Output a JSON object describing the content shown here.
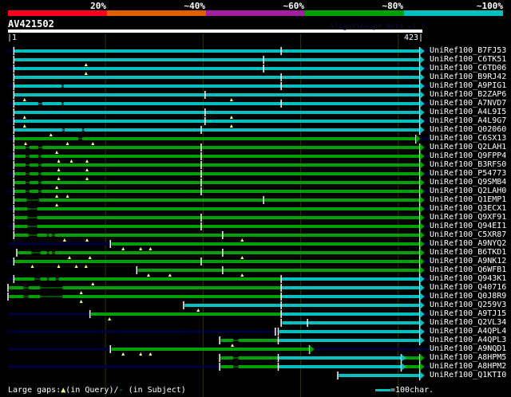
{
  "coverage_legend": {
    "labels": [
      "20%",
      "~40%",
      "~60%",
      "~80%",
      "~100%"
    ],
    "colors": [
      "#ff0020",
      "#e06000",
      "#a020a0",
      "#00a000",
      "#00c0c0"
    ]
  },
  "query": {
    "name": "AV421502",
    "start_label": "|1",
    "end_label": "423|",
    "length": 423,
    "tool": "AlignView.pm Beta v1.7"
  },
  "colors": {
    "c": "#00c0c0",
    "g": "#00a000",
    "n": "#000040",
    "tri": "#ffff80",
    "grid": "#303010"
  },
  "footer": {
    "gaps_label": "Large gaps:",
    "query_gap": "(in Query)/",
    "subject_gap": "(in Subject)",
    "scale_label": "=100char."
  },
  "rows": [
    {
      "label": "UniRef100_B7FJ53",
      "col": "c",
      "nl": 1,
      "nr": 1,
      "s": [
        [
          6,
          422
        ]
      ],
      "k": [
        6,
        280
      ],
      "t": []
    },
    {
      "label": "UniRef100_C6TK51",
      "col": "c",
      "s": [
        [
          6,
          422
        ]
      ],
      "k": [
        6,
        262
      ],
      "t": [
        80
      ]
    },
    {
      "label": "UniRef100_C6TD06",
      "col": "c",
      "nl": 1,
      "nr": 1,
      "s": [
        [
          6,
          422
        ]
      ],
      "k": [
        6,
        262
      ],
      "t": [
        80
      ]
    },
    {
      "label": "UniRef100_B9RJ42",
      "col": "c",
      "s": [
        [
          6,
          422
        ]
      ],
      "k": [
        6,
        280
      ],
      "t": []
    },
    {
      "label": "UniRef100_A9PIG1",
      "col": "c",
      "nl": 1,
      "nr": 1,
      "s": [
        [
          6,
          55
        ],
        [
          55,
          57,
          0,
          1
        ],
        [
          57,
          422
        ]
      ],
      "k": [
        6,
        280
      ],
      "t": []
    },
    {
      "label": "UniRef100_B2ZAP6",
      "col": "c",
      "s": [
        [
          6,
          422
        ]
      ],
      "k": [
        6,
        202
      ],
      "t": [
        17,
        229
      ]
    },
    {
      "label": "UniRef100_A7NVD7",
      "col": "c",
      "nl": 1,
      "nr": 1,
      "s": [
        [
          6,
          31
        ],
        [
          31,
          35,
          0,
          1
        ],
        [
          35,
          55
        ],
        [
          55,
          57,
          0,
          1
        ],
        [
          57,
          422
        ]
      ],
      "k": [
        6,
        280
      ],
      "t": []
    },
    {
      "label": "UniRef100_A4L9I5",
      "col": "c",
      "s": [
        [
          6,
          422
        ]
      ],
      "k": [
        6,
        202
      ],
      "t": [
        17,
        229
      ]
    },
    {
      "label": "UniRef100_A4L9G7",
      "col": "c",
      "nl": 1,
      "nr": 1,
      "s": [
        [
          6,
          422
        ]
      ],
      "k": [
        6,
        202
      ],
      "t": [
        17,
        229
      ]
    },
    {
      "label": "UniRef100_Q02060",
      "col": "c",
      "s": [
        [
          6,
          56
        ],
        [
          56,
          58,
          0,
          1
        ],
        [
          58,
          76
        ],
        [
          76,
          78,
          0,
          1
        ],
        [
          78,
          422
        ]
      ],
      "k": [
        6,
        198
      ],
      "t": [
        44
      ]
    },
    {
      "label": "UniRef100_C6SX13",
      "col": "g",
      "nl": 1,
      "nr": 1,
      "s": [
        [
          6,
          72
        ],
        [
          72,
          76,
          0,
          1
        ],
        [
          76,
          418
        ]
      ],
      "k": [
        6
      ],
      "t": [
        18,
        61,
        87
      ]
    },
    {
      "label": "UniRef100_Q2LAH1",
      "col": "g",
      "s": [
        [
          6,
          18
        ],
        [
          18,
          22,
          0,
          1
        ],
        [
          22,
          31
        ],
        [
          31,
          35,
          0,
          1
        ],
        [
          35,
          422
        ]
      ],
      "k": [
        6,
        198
      ],
      "t": [
        50
      ]
    },
    {
      "label": "UniRef100_Q9FPP4",
      "col": "g",
      "nl": 1,
      "nr": 1,
      "s": [
        [
          6,
          18
        ],
        [
          18,
          22,
          0,
          1
        ],
        [
          22,
          31
        ],
        [
          31,
          34,
          0,
          1
        ],
        [
          34,
          422
        ]
      ],
      "k": [
        6,
        198
      ],
      "t": [
        52,
        65,
        81
      ]
    },
    {
      "label": "UniRef100_B3RFS0",
      "col": "g",
      "s": [
        [
          6,
          18
        ],
        [
          18,
          22,
          0,
          1
        ],
        [
          22,
          31
        ],
        [
          31,
          34,
          0,
          1
        ],
        [
          34,
          422
        ]
      ],
      "k": [
        6,
        198
      ],
      "t": [
        52,
        81
      ]
    },
    {
      "label": "UniRef100_P54773",
      "col": "g",
      "nl": 1,
      "nr": 1,
      "s": [
        [
          6,
          18
        ],
        [
          18,
          22,
          0,
          1
        ],
        [
          22,
          31
        ],
        [
          31,
          34,
          0,
          1
        ],
        [
          34,
          422
        ]
      ],
      "k": [
        6,
        198
      ],
      "t": [
        52,
        81
      ]
    },
    {
      "label": "UniRef100_Q9SMB4",
      "col": "g",
      "s": [
        [
          6,
          18
        ],
        [
          18,
          22,
          0,
          1
        ],
        [
          22,
          31
        ],
        [
          31,
          34,
          0,
          1
        ],
        [
          34,
          422
        ]
      ],
      "k": [
        6,
        198
      ],
      "t": [
        50
      ]
    },
    {
      "label": "UniRef100_Q2LAH0",
      "col": "g",
      "nl": 1,
      "nr": 1,
      "s": [
        [
          6,
          18
        ],
        [
          18,
          22,
          0,
          1
        ],
        [
          22,
          31
        ],
        [
          31,
          34,
          0,
          1
        ],
        [
          34,
          422
        ]
      ],
      "k": [
        6,
        198
      ],
      "t": [
        50,
        61
      ]
    },
    {
      "label": "UniRef100_Q1EMP1",
      "col": "g",
      "s": [
        [
          6,
          19
        ],
        [
          19,
          32,
          0,
          1
        ],
        [
          32,
          422
        ]
      ],
      "k": [
        6,
        262
      ],
      "t": [
        50
      ]
    },
    {
      "label": "UniRef100_Q3ECX1",
      "col": "g",
      "nl": 1,
      "nr": 1,
      "s": [
        [
          6,
          20
        ],
        [
          20,
          30,
          0,
          1
        ],
        [
          30,
          422
        ]
      ],
      "k": [
        6
      ],
      "t": []
    },
    {
      "label": "UniRef100_Q9XF91",
      "col": "g",
      "s": [
        [
          6,
          20
        ],
        [
          20,
          30,
          0,
          1
        ],
        [
          30,
          422
        ]
      ],
      "k": [
        6,
        198
      ],
      "t": []
    },
    {
      "label": "UniRef100_Q94EI1",
      "col": "g",
      "nl": 1,
      "nr": 1,
      "s": [
        [
          6,
          20
        ],
        [
          20,
          30,
          0,
          1
        ],
        [
          30,
          422
        ]
      ],
      "k": [
        6,
        198
      ],
      "t": []
    },
    {
      "label": "UniRef100_C5XR87",
      "col": "g",
      "s": [
        [
          6,
          21
        ],
        [
          21,
          30,
          0,
          1
        ],
        [
          30,
          40
        ],
        [
          40,
          42,
          0,
          1
        ],
        [
          42,
          45
        ],
        [
          45,
          48,
          0,
          1
        ],
        [
          48,
          422
        ]
      ],
      "k": [
        6,
        220
      ],
      "t": [
        58,
        81,
        240
      ]
    },
    {
      "label": "UniRef100_A9NYQ2",
      "col": "g",
      "nl": 1,
      "nr": 1,
      "s": [
        [
          106,
          422
        ]
      ],
      "k": [
        105
      ],
      "t": [
        118,
        136,
        146
      ]
    },
    {
      "label": "UniRef100_B6TKD1",
      "col": "g",
      "s": [
        [
          10,
          24
        ],
        [
          24,
          33,
          0,
          1
        ],
        [
          33,
          40
        ],
        [
          40,
          42,
          0,
          1
        ],
        [
          42,
          45
        ],
        [
          45,
          48,
          0,
          1
        ],
        [
          48,
          422
        ]
      ],
      "k": [
        9,
        220
      ],
      "t": [
        63,
        84,
        240
      ]
    },
    {
      "label": "UniRef100_A9NK12",
      "col": "g",
      "nl": 1,
      "nr": 1,
      "s": [
        [
          6,
          422
        ]
      ],
      "k": [
        6,
        198
      ],
      "t": [
        25,
        52,
        70,
        80
      ]
    },
    {
      "label": "UniRef100_Q6WFB1",
      "col": "g",
      "s": [
        [
          133,
          422
        ]
      ],
      "k": [
        132,
        220
      ],
      "t": [
        144,
        166,
        240
      ]
    },
    {
      "label": "UniRef100_Q943K1",
      "col": "g",
      "nl": 1,
      "nr": 1,
      "s": [
        [
          6,
          27
        ],
        [
          27,
          33,
          0,
          1
        ],
        [
          33,
          40
        ],
        [
          40,
          42,
          0,
          1
        ],
        [
          42,
          49
        ],
        [
          49,
          52,
          0,
          1
        ],
        [
          52,
          280
        ],
        [
          280,
          422,
          "c"
        ]
      ],
      "k": [
        6,
        280
      ],
      "t": [
        87
      ]
    },
    {
      "label": "UniRef100_Q40716",
      "col": "g",
      "s": [
        [
          1,
          16
        ],
        [
          16,
          21,
          0,
          1
        ],
        [
          21,
          33
        ],
        [
          33,
          56,
          0,
          1
        ],
        [
          56,
          280
        ],
        [
          280,
          422,
          "c"
        ]
      ],
      "k": [
        0,
        280
      ],
      "t": [
        75
      ]
    },
    {
      "label": "UniRef100_Q0J8R9",
      "col": "g",
      "nr": 1,
      "s": [
        [
          1,
          16
        ],
        [
          16,
          21,
          0,
          1
        ],
        [
          21,
          33
        ],
        [
          33,
          56,
          0,
          1
        ],
        [
          56,
          280
        ],
        [
          280,
          422,
          "c"
        ]
      ],
      "k": [
        0,
        280
      ],
      "t": [
        75
      ]
    },
    {
      "label": "UniRef100_Q259V3",
      "col": "c",
      "s": [
        [
          181,
          422
        ]
      ],
      "k": [
        180,
        280
      ],
      "t": [
        195
      ]
    },
    {
      "label": "UniRef100_A9TJ15",
      "col": "g",
      "nl": 1,
      "nr": 1,
      "s": [
        [
          85,
          280
        ],
        [
          280,
          422,
          "c"
        ]
      ],
      "k": [
        84,
        280
      ],
      "t": [
        104
      ]
    },
    {
      "label": "UniRef100_Q2VL34",
      "col": "c",
      "s": [
        [
          281,
          422
        ]
      ],
      "k": [
        280,
        307
      ],
      "t": []
    },
    {
      "label": "UniRef100_A4QPL4",
      "col": "c",
      "nl": 1,
      "nr": 1,
      "s": [
        [
          278,
          422
        ]
      ],
      "k": [
        274,
        277
      ],
      "t": []
    },
    {
      "label": "UniRef100_A4QPL3",
      "col": "g",
      "s": [
        [
          218,
          231
        ],
        [
          231,
          236,
          0,
          1
        ],
        [
          236,
          277
        ],
        [
          277,
          422,
          "c"
        ]
      ],
      "k": [
        217,
        277
      ],
      "t": [
        230
      ]
    },
    {
      "label": "UniRef100_A9NQD1",
      "col": "g",
      "nl": 1,
      "nr": 1,
      "s": [
        [
          106,
          309
        ]
      ],
      "k": [
        105
      ],
      "t": [
        118,
        136,
        146
      ]
    },
    {
      "label": "UniRef100_A8HPM5",
      "col": "g",
      "s": [
        [
          218,
          231
        ],
        [
          231,
          236,
          0,
          1
        ],
        [
          236,
          277
        ],
        [
          277,
          403,
          "c"
        ],
        [
          406,
          422
        ]
      ],
      "k": [
        217,
        277
      ],
      "t": [],
      "a2": 403
    },
    {
      "label": "UniRef100_A8HPM2",
      "col": "g",
      "nl": 1,
      "nr": 1,
      "s": [
        [
          218,
          231
        ],
        [
          231,
          236,
          0,
          1
        ],
        [
          236,
          277
        ],
        [
          277,
          403,
          "c"
        ],
        [
          406,
          422
        ]
      ],
      "k": [
        217,
        277
      ],
      "t": [],
      "a2": 403
    },
    {
      "label": "UniRef100_Q1KTI0",
      "col": "c",
      "s": [
        [
          339,
          422
        ]
      ],
      "k": [
        338
      ],
      "t": []
    }
  ]
}
